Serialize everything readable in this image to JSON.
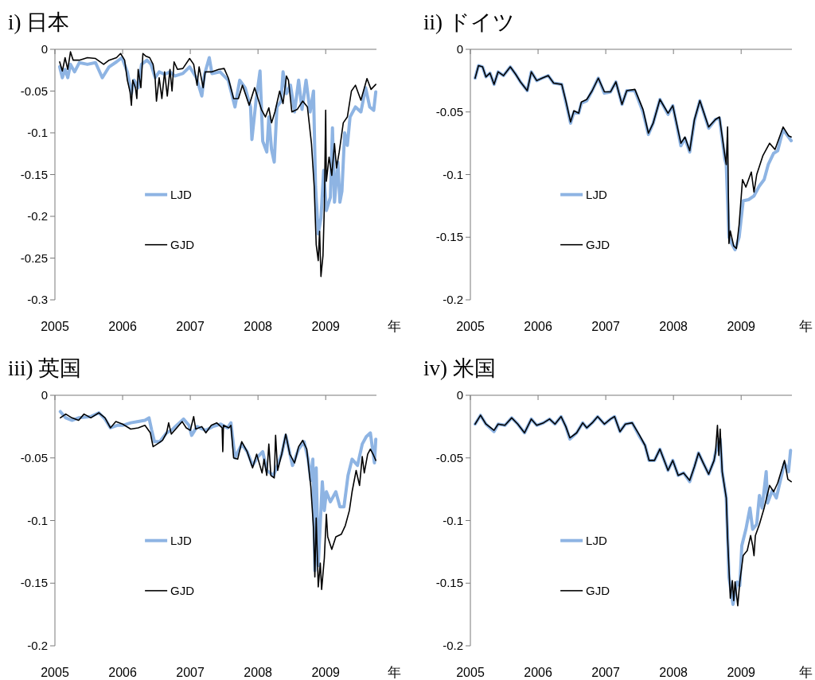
{
  "chart_data": [
    {
      "type": "line",
      "title": "i) 日本",
      "xlabel": "年",
      "xlim": [
        2005,
        2009.75
      ],
      "xticks": [
        2005,
        2006,
        2007,
        2008,
        2009
      ],
      "ylim": [
        -0.3,
        0
      ],
      "yticks": [
        -0.3,
        -0.25,
        -0.2,
        -0.15,
        -0.1,
        -0.05,
        0
      ],
      "legend": "left",
      "series": [
        {
          "name": "LJD",
          "color": "#8eb4e3",
          "x": [
            2005.07,
            2005.11,
            2005.15,
            2005.19,
            2005.23,
            2005.29,
            2005.36,
            2005.48,
            2005.6,
            2005.7,
            2005.8,
            2005.91,
            2005.99,
            2006.07,
            2006.13,
            2006.17,
            2006.23,
            2006.28,
            2006.36,
            2006.42,
            2006.48,
            2006.54,
            2006.62,
            2006.7,
            2006.77,
            2006.89,
            2006.99,
            2007.09,
            2007.17,
            2007.21,
            2007.28,
            2007.32,
            2007.44,
            2007.56,
            2007.66,
            2007.73,
            2007.81,
            2007.89,
            2007.91,
            2007.97,
            2008.03,
            2008.07,
            2008.13,
            2008.16,
            2008.2,
            2008.24,
            2008.28,
            2008.34,
            2008.37,
            2008.42,
            2008.48,
            2008.54,
            2008.6,
            2008.65,
            2008.71,
            2008.77,
            2008.82,
            2008.85,
            2008.89,
            2008.93,
            2008.97,
            2009.01,
            2009.07,
            2009.1,
            2009.13,
            2009.18,
            2009.21,
            2009.24,
            2009.28,
            2009.32,
            2009.36,
            2009.44,
            2009.52,
            2009.59,
            2009.65,
            2009.71,
            2009.74
          ],
          "values": [
            -0.021,
            -0.034,
            -0.024,
            -0.034,
            -0.018,
            -0.027,
            -0.016,
            -0.018,
            -0.016,
            -0.034,
            -0.021,
            -0.015,
            -0.01,
            -0.027,
            -0.053,
            -0.037,
            -0.046,
            -0.018,
            -0.013,
            -0.018,
            -0.034,
            -0.027,
            -0.03,
            -0.027,
            -0.032,
            -0.029,
            -0.021,
            -0.034,
            -0.056,
            -0.03,
            -0.01,
            -0.029,
            -0.027,
            -0.037,
            -0.069,
            -0.037,
            -0.046,
            -0.069,
            -0.108,
            -0.062,
            -0.026,
            -0.11,
            -0.123,
            -0.081,
            -0.12,
            -0.135,
            -0.069,
            -0.062,
            -0.027,
            -0.053,
            -0.043,
            -0.075,
            -0.037,
            -0.072,
            -0.037,
            -0.075,
            -0.05,
            -0.164,
            -0.221,
            -0.202,
            -0.145,
            -0.193,
            -0.177,
            -0.094,
            -0.183,
            -0.135,
            -0.183,
            -0.17,
            -0.1,
            -0.115,
            -0.081,
            -0.069,
            -0.075,
            -0.046,
            -0.069,
            -0.073,
            -0.051
          ]
        },
        {
          "name": "GJD",
          "color": "#000000",
          "x": [
            2005.07,
            2005.11,
            2005.15,
            2005.19,
            2005.23,
            2005.27,
            2005.36,
            2005.48,
            2005.6,
            2005.72,
            2005.8,
            2005.91,
            2005.97,
            2006.03,
            2006.07,
            2006.11,
            2006.13,
            2006.15,
            2006.19,
            2006.21,
            2006.23,
            2006.27,
            2006.3,
            2006.34,
            2006.4,
            2006.45,
            2006.48,
            2006.5,
            2006.54,
            2006.58,
            2006.62,
            2006.66,
            2006.7,
            2006.73,
            2006.76,
            2006.81,
            2006.89,
            2006.99,
            2007.05,
            2007.1,
            2007.13,
            2007.19,
            2007.22,
            2007.32,
            2007.42,
            2007.5,
            2007.56,
            2007.64,
            2007.71,
            2007.77,
            2007.87,
            2007.95,
            2008.05,
            2008.11,
            2008.16,
            2008.2,
            2008.25,
            2008.32,
            2008.37,
            2008.42,
            2008.45,
            2008.5,
            2008.58,
            2008.66,
            2008.73,
            2008.79,
            2008.83,
            2008.86,
            2008.89,
            2008.91,
            2008.93,
            2008.96,
            2008.98,
            2009.0,
            2009.01,
            2009.05,
            2009.09,
            2009.13,
            2009.16,
            2009.2,
            2009.26,
            2009.32,
            2009.38,
            2009.44,
            2009.52,
            2009.61,
            2009.67,
            2009.74
          ],
          "values": [
            -0.015,
            -0.026,
            -0.01,
            -0.024,
            -0.003,
            -0.013,
            -0.013,
            -0.01,
            -0.011,
            -0.018,
            -0.013,
            -0.01,
            -0.005,
            -0.013,
            -0.037,
            -0.051,
            -0.067,
            -0.037,
            -0.046,
            -0.059,
            -0.024,
            -0.046,
            -0.005,
            -0.008,
            -0.01,
            -0.018,
            -0.034,
            -0.062,
            -0.034,
            -0.059,
            -0.027,
            -0.056,
            -0.024,
            -0.05,
            -0.015,
            -0.024,
            -0.023,
            -0.011,
            -0.018,
            -0.043,
            -0.021,
            -0.046,
            -0.027,
            -0.027,
            -0.024,
            -0.023,
            -0.034,
            -0.059,
            -0.059,
            -0.043,
            -0.067,
            -0.046,
            -0.072,
            -0.081,
            -0.07,
            -0.088,
            -0.075,
            -0.05,
            -0.065,
            -0.032,
            -0.037,
            -0.075,
            -0.072,
            -0.062,
            -0.069,
            -0.113,
            -0.164,
            -0.234,
            -0.253,
            -0.218,
            -0.272,
            -0.247,
            -0.189,
            -0.073,
            -0.158,
            -0.129,
            -0.151,
            -0.113,
            -0.142,
            -0.123,
            -0.088,
            -0.081,
            -0.05,
            -0.043,
            -0.061,
            -0.035,
            -0.048,
            -0.042
          ]
        }
      ]
    },
    {
      "type": "line",
      "title": "ii) ドイツ",
      "xlabel": "年",
      "xlim": [
        2005,
        2009.75
      ],
      "xticks": [
        2005,
        2006,
        2007,
        2008,
        2009
      ],
      "ylim": [
        -0.2,
        0
      ],
      "yticks": [
        -0.2,
        -0.15,
        -0.1,
        -0.05,
        0
      ],
      "legend": "left",
      "series": [
        {
          "name": "LJD",
          "color": "#8eb4e3",
          "x": [
            2005.07,
            2005.12,
            2005.18,
            2005.23,
            2005.29,
            2005.35,
            2005.41,
            2005.49,
            2005.59,
            2005.67,
            2005.74,
            2005.84,
            2005.9,
            2005.98,
            2006.06,
            2006.15,
            2006.23,
            2006.35,
            2006.41,
            2006.48,
            2006.53,
            2006.6,
            2006.64,
            2006.72,
            2006.8,
            2006.89,
            2006.98,
            2007.07,
            2007.15,
            2007.24,
            2007.31,
            2007.43,
            2007.55,
            2007.63,
            2007.7,
            2007.8,
            2007.92,
            2007.99,
            2008.11,
            2008.17,
            2008.24,
            2008.31,
            2008.39,
            2008.52,
            2008.62,
            2008.68,
            2008.76,
            2008.78,
            2008.82,
            2008.86,
            2008.91,
            2008.97,
            2009.03,
            2009.11,
            2009.19,
            2009.27,
            2009.34,
            2009.4,
            2009.48,
            2009.54,
            2009.62,
            2009.7,
            2009.74
          ],
          "values": [
            -0.023,
            -0.013,
            -0.014,
            -0.022,
            -0.019,
            -0.028,
            -0.018,
            -0.021,
            -0.014,
            -0.02,
            -0.026,
            -0.033,
            -0.018,
            -0.025,
            -0.023,
            -0.021,
            -0.027,
            -0.028,
            -0.042,
            -0.059,
            -0.05,
            -0.051,
            -0.043,
            -0.041,
            -0.033,
            -0.023,
            -0.035,
            -0.034,
            -0.026,
            -0.044,
            -0.033,
            -0.033,
            -0.05,
            -0.068,
            -0.059,
            -0.04,
            -0.052,
            -0.045,
            -0.077,
            -0.071,
            -0.082,
            -0.057,
            -0.041,
            -0.063,
            -0.056,
            -0.055,
            -0.088,
            -0.092,
            -0.15,
            -0.155,
            -0.16,
            -0.15,
            -0.121,
            -0.12,
            -0.117,
            -0.109,
            -0.104,
            -0.092,
            -0.083,
            -0.081,
            -0.064,
            -0.07,
            -0.073
          ]
        },
        {
          "name": "GJD",
          "color": "#000000",
          "x": [
            2005.07,
            2005.12,
            2005.18,
            2005.23,
            2005.29,
            2005.35,
            2005.41,
            2005.49,
            2005.59,
            2005.67,
            2005.74,
            2005.84,
            2005.9,
            2005.98,
            2006.06,
            2006.15,
            2006.23,
            2006.35,
            2006.41,
            2006.48,
            2006.53,
            2006.6,
            2006.64,
            2006.72,
            2006.8,
            2006.89,
            2006.98,
            2007.07,
            2007.15,
            2007.24,
            2007.31,
            2007.43,
            2007.55,
            2007.63,
            2007.7,
            2007.8,
            2007.92,
            2007.99,
            2008.11,
            2008.17,
            2008.24,
            2008.31,
            2008.39,
            2008.52,
            2008.62,
            2008.68,
            2008.76,
            2008.78,
            2008.8,
            2008.82,
            2008.84,
            2008.89,
            2008.93,
            2008.97,
            2009.02,
            2009.07,
            2009.15,
            2009.19,
            2009.23,
            2009.32,
            2009.42,
            2009.5,
            2009.62,
            2009.7,
            2009.74
          ],
          "values": [
            -0.023,
            -0.013,
            -0.014,
            -0.022,
            -0.019,
            -0.028,
            -0.018,
            -0.021,
            -0.014,
            -0.02,
            -0.026,
            -0.033,
            -0.018,
            -0.025,
            -0.023,
            -0.021,
            -0.027,
            -0.028,
            -0.041,
            -0.058,
            -0.049,
            -0.051,
            -0.042,
            -0.04,
            -0.033,
            -0.023,
            -0.034,
            -0.034,
            -0.026,
            -0.044,
            -0.033,
            -0.032,
            -0.048,
            -0.067,
            -0.059,
            -0.04,
            -0.051,
            -0.045,
            -0.075,
            -0.07,
            -0.081,
            -0.056,
            -0.041,
            -0.062,
            -0.056,
            -0.054,
            -0.085,
            -0.092,
            -0.062,
            -0.155,
            -0.145,
            -0.157,
            -0.159,
            -0.14,
            -0.104,
            -0.11,
            -0.098,
            -0.114,
            -0.1,
            -0.085,
            -0.075,
            -0.08,
            -0.062,
            -0.069,
            -0.07
          ]
        }
      ]
    },
    {
      "type": "line",
      "title": "iii) 英国",
      "xlabel": "年",
      "xlim": [
        2005,
        2009.75
      ],
      "xticks": [
        2005,
        2006,
        2007,
        2008,
        2009
      ],
      "ylim": [
        -0.2,
        0
      ],
      "yticks": [
        -0.2,
        -0.15,
        -0.1,
        -0.05,
        0
      ],
      "legend": "left",
      "series": [
        {
          "name": "LJD",
          "color": "#8eb4e3",
          "x": [
            2005.08,
            2005.16,
            2005.25,
            2005.35,
            2005.53,
            2005.65,
            2005.74,
            2005.82,
            2005.92,
            2006.0,
            2006.12,
            2006.23,
            2006.33,
            2006.39,
            2006.43,
            2006.47,
            2006.55,
            2006.65,
            2006.72,
            2006.8,
            2006.9,
            2006.98,
            2007.02,
            2007.1,
            2007.23,
            2007.33,
            2007.45,
            2007.55,
            2007.6,
            2007.66,
            2007.76,
            2007.84,
            2007.92,
            2008.0,
            2008.07,
            2008.13,
            2008.23,
            2008.35,
            2008.41,
            2008.51,
            2008.6,
            2008.68,
            2008.74,
            2008.78,
            2008.81,
            2008.84,
            2008.86,
            2008.89,
            2008.95,
            2008.98,
            2009.01,
            2009.07,
            2009.15,
            2009.21,
            2009.27,
            2009.33,
            2009.39,
            2009.47,
            2009.54,
            2009.6,
            2009.66,
            2009.72,
            2009.74
          ],
          "values": [
            -0.013,
            -0.018,
            -0.02,
            -0.018,
            -0.017,
            -0.014,
            -0.019,
            -0.026,
            -0.024,
            -0.024,
            -0.022,
            -0.021,
            -0.02,
            -0.018,
            -0.028,
            -0.037,
            -0.037,
            -0.03,
            -0.028,
            -0.024,
            -0.019,
            -0.024,
            -0.032,
            -0.025,
            -0.028,
            -0.025,
            -0.023,
            -0.026,
            -0.022,
            -0.05,
            -0.039,
            -0.045,
            -0.056,
            -0.049,
            -0.045,
            -0.06,
            -0.064,
            -0.047,
            -0.032,
            -0.056,
            -0.043,
            -0.037,
            -0.051,
            -0.068,
            -0.051,
            -0.14,
            -0.058,
            -0.136,
            -0.069,
            -0.092,
            -0.077,
            -0.085,
            -0.077,
            -0.089,
            -0.089,
            -0.064,
            -0.051,
            -0.056,
            -0.039,
            -0.033,
            -0.03,
            -0.054,
            -0.035
          ]
        },
        {
          "name": "GJD",
          "color": "#000000",
          "x": [
            2005.08,
            2005.16,
            2005.25,
            2005.35,
            2005.43,
            2005.53,
            2005.65,
            2005.74,
            2005.82,
            2005.9,
            2006.0,
            2006.12,
            2006.23,
            2006.33,
            2006.41,
            2006.45,
            2006.51,
            2006.59,
            2006.65,
            2006.68,
            2006.72,
            2006.8,
            2006.88,
            2006.94,
            2007.0,
            2007.05,
            2007.08,
            2007.17,
            2007.23,
            2007.31,
            2007.39,
            2007.47,
            2007.48,
            2007.49,
            2007.57,
            2007.6,
            2007.64,
            2007.7,
            2007.76,
            2007.84,
            2007.92,
            2007.98,
            2008.06,
            2008.09,
            2008.13,
            2008.16,
            2008.19,
            2008.24,
            2008.26,
            2008.29,
            2008.35,
            2008.41,
            2008.47,
            2008.54,
            2008.6,
            2008.66,
            2008.72,
            2008.78,
            2008.82,
            2008.84,
            2008.86,
            2008.89,
            2008.92,
            2008.94,
            2008.98,
            2009.01,
            2009.03,
            2009.09,
            2009.15,
            2009.23,
            2009.29,
            2009.35,
            2009.39,
            2009.45,
            2009.5,
            2009.54,
            2009.57,
            2009.62,
            2009.66,
            2009.7,
            2009.74
          ],
          "values": [
            -0.018,
            -0.015,
            -0.018,
            -0.02,
            -0.015,
            -0.018,
            -0.014,
            -0.018,
            -0.026,
            -0.021,
            -0.023,
            -0.027,
            -0.026,
            -0.024,
            -0.03,
            -0.041,
            -0.039,
            -0.036,
            -0.03,
            -0.022,
            -0.031,
            -0.026,
            -0.021,
            -0.026,
            -0.028,
            -0.017,
            -0.027,
            -0.025,
            -0.03,
            -0.024,
            -0.022,
            -0.026,
            -0.045,
            -0.024,
            -0.026,
            -0.024,
            -0.05,
            -0.051,
            -0.037,
            -0.045,
            -0.058,
            -0.047,
            -0.062,
            -0.051,
            -0.064,
            -0.039,
            -0.064,
            -0.066,
            -0.032,
            -0.06,
            -0.047,
            -0.031,
            -0.047,
            -0.054,
            -0.041,
            -0.036,
            -0.043,
            -0.073,
            -0.106,
            -0.145,
            -0.098,
            -0.153,
            -0.134,
            -0.155,
            -0.13,
            -0.095,
            -0.113,
            -0.123,
            -0.113,
            -0.111,
            -0.104,
            -0.092,
            -0.077,
            -0.06,
            -0.072,
            -0.049,
            -0.062,
            -0.047,
            -0.043,
            -0.047,
            -0.052
          ]
        }
      ]
    },
    {
      "type": "line",
      "title": "iv) 米国",
      "xlabel": "年",
      "xlim": [
        2005,
        2009.75
      ],
      "xticks": [
        2005,
        2006,
        2007,
        2008,
        2009
      ],
      "ylim": [
        -0.2,
        0
      ],
      "yticks": [
        -0.2,
        -0.15,
        -0.1,
        -0.05,
        0
      ],
      "legend": "left",
      "series": [
        {
          "name": "LJD",
          "color": "#8eb4e3",
          "x": [
            2005.07,
            2005.15,
            2005.23,
            2005.35,
            2005.41,
            2005.51,
            2005.61,
            2005.7,
            2005.8,
            2005.9,
            2005.98,
            2006.08,
            2006.17,
            2006.25,
            2006.34,
            2006.41,
            2006.47,
            2006.57,
            2006.66,
            2006.72,
            2006.8,
            2006.88,
            2006.98,
            2007.07,
            2007.13,
            2007.21,
            2007.29,
            2007.39,
            2007.5,
            2007.58,
            2007.64,
            2007.72,
            2007.8,
            2007.92,
            2007.99,
            2008.07,
            2008.15,
            2008.24,
            2008.31,
            2008.37,
            2008.44,
            2008.52,
            2008.6,
            2008.62,
            2008.69,
            2008.72,
            2008.78,
            2008.82,
            2008.88,
            2008.94,
            2008.98,
            2009.01,
            2009.07,
            2009.13,
            2009.17,
            2009.23,
            2009.27,
            2009.31,
            2009.37,
            2009.39,
            2009.46,
            2009.52,
            2009.64,
            2009.7,
            2009.73
          ],
          "values": [
            -0.023,
            -0.016,
            -0.023,
            -0.029,
            -0.023,
            -0.024,
            -0.018,
            -0.023,
            -0.03,
            -0.019,
            -0.024,
            -0.022,
            -0.019,
            -0.023,
            -0.017,
            -0.025,
            -0.035,
            -0.03,
            -0.022,
            -0.026,
            -0.022,
            -0.017,
            -0.023,
            -0.019,
            -0.017,
            -0.029,
            -0.023,
            -0.022,
            -0.033,
            -0.04,
            -0.052,
            -0.052,
            -0.043,
            -0.06,
            -0.052,
            -0.064,
            -0.062,
            -0.069,
            -0.057,
            -0.046,
            -0.054,
            -0.063,
            -0.052,
            -0.046,
            -0.035,
            -0.061,
            -0.082,
            -0.145,
            -0.167,
            -0.149,
            -0.152,
            -0.12,
            -0.107,
            -0.09,
            -0.107,
            -0.103,
            -0.08,
            -0.09,
            -0.061,
            -0.086,
            -0.076,
            -0.082,
            -0.054,
            -0.061,
            -0.044
          ]
        },
        {
          "name": "GJD",
          "color": "#000000",
          "x": [
            2005.07,
            2005.15,
            2005.23,
            2005.35,
            2005.41,
            2005.51,
            2005.61,
            2005.7,
            2005.8,
            2005.9,
            2005.98,
            2006.08,
            2006.17,
            2006.25,
            2006.34,
            2006.41,
            2006.47,
            2006.57,
            2006.66,
            2006.72,
            2006.8,
            2006.88,
            2006.98,
            2007.07,
            2007.13,
            2007.21,
            2007.29,
            2007.39,
            2007.5,
            2007.58,
            2007.64,
            2007.72,
            2007.8,
            2007.92,
            2007.99,
            2008.07,
            2008.15,
            2008.24,
            2008.31,
            2008.37,
            2008.44,
            2008.52,
            2008.6,
            2008.62,
            2008.65,
            2008.67,
            2008.69,
            2008.72,
            2008.78,
            2008.8,
            2008.84,
            2008.87,
            2008.89,
            2008.91,
            2008.95,
            2008.98,
            2009.03,
            2009.09,
            2009.14,
            2009.17,
            2009.19,
            2009.21,
            2009.27,
            2009.34,
            2009.42,
            2009.48,
            2009.54,
            2009.64,
            2009.69,
            2009.74
          ],
          "values": [
            -0.023,
            -0.016,
            -0.023,
            -0.028,
            -0.023,
            -0.024,
            -0.018,
            -0.023,
            -0.03,
            -0.019,
            -0.024,
            -0.022,
            -0.019,
            -0.023,
            -0.017,
            -0.025,
            -0.034,
            -0.03,
            -0.022,
            -0.026,
            -0.022,
            -0.017,
            -0.023,
            -0.019,
            -0.017,
            -0.029,
            -0.023,
            -0.022,
            -0.032,
            -0.04,
            -0.052,
            -0.052,
            -0.043,
            -0.06,
            -0.052,
            -0.064,
            -0.062,
            -0.068,
            -0.057,
            -0.046,
            -0.054,
            -0.063,
            -0.052,
            -0.046,
            -0.024,
            -0.048,
            -0.027,
            -0.061,
            -0.082,
            -0.114,
            -0.162,
            -0.148,
            -0.164,
            -0.149,
            -0.168,
            -0.149,
            -0.128,
            -0.124,
            -0.112,
            -0.12,
            -0.128,
            -0.112,
            -0.103,
            -0.09,
            -0.072,
            -0.077,
            -0.07,
            -0.052,
            -0.067,
            -0.069
          ]
        }
      ]
    }
  ]
}
